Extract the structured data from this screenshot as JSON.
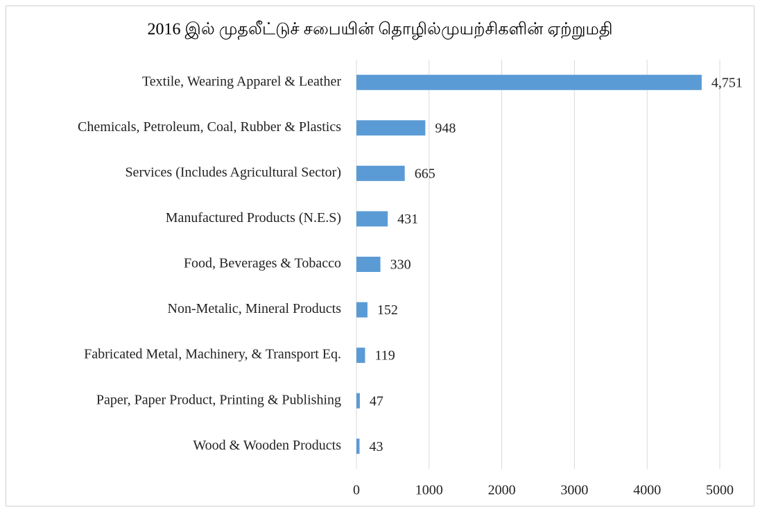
{
  "chart_data": {
    "type": "bar",
    "orientation": "horizontal",
    "title": "2016 இல் முதலீட்டுச் சபையின் தொழில்முயற்சிகளின் ஏற்றுமதி",
    "categories": [
      "Textile, Wearing Apparel & Leather",
      "Chemicals, Petroleum, Coal, Rubber & Plastics",
      "Services (Includes Agricultural Sector)",
      "Manufactured Products (N.E.S)",
      "Food, Beverages & Tobacco",
      "Non-Metalic, Mineral Products",
      "Fabricated Metal, Machinery, & Transport Eq.",
      "Paper, Paper Product, Printing & Publishing",
      "Wood & Wooden Products"
    ],
    "values": [
      4751,
      948,
      665,
      431,
      330,
      152,
      119,
      47,
      43
    ],
    "value_labels": [
      "4,751",
      "948",
      "665",
      "431",
      "330",
      "152",
      "119",
      "47",
      "43"
    ],
    "color": "#5b9bd5",
    "xlim": [
      0,
      5000
    ],
    "xticks": [
      0,
      1000,
      2000,
      3000,
      4000,
      5000
    ],
    "grid": true
  }
}
